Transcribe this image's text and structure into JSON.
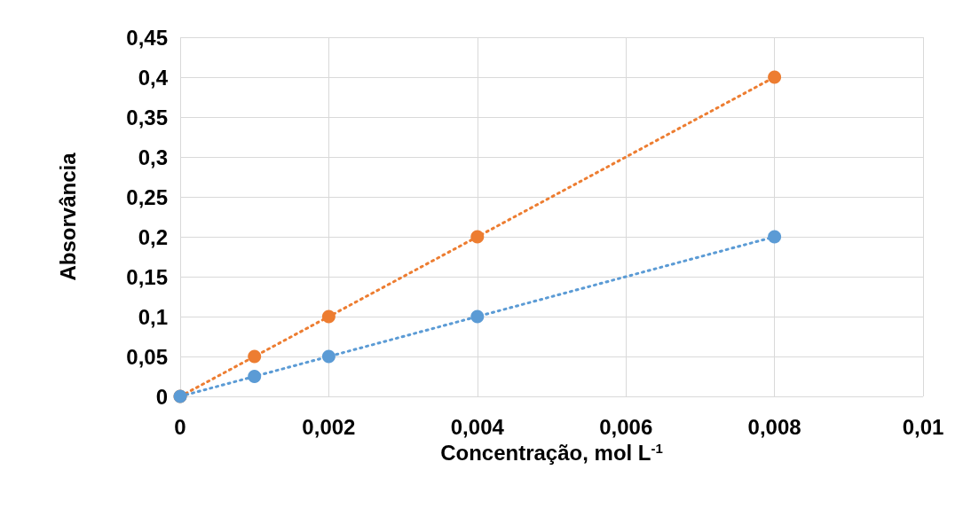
{
  "chart_data": {
    "type": "line",
    "xlabel": "Concentração, mol L$^{-1}$",
    "ylabel": "Absorvância",
    "x": [
      0,
      0.001,
      0.002,
      0.004,
      0.008
    ],
    "series": [
      {
        "color": "#ed7d31",
        "values": [
          0,
          0.05,
          0.1,
          0.2,
          0.4
        ]
      },
      {
        "color": "#5b9bd5",
        "values": [
          0,
          0.025,
          0.05,
          0.1,
          0.2
        ]
      }
    ],
    "xlim": [
      0,
      0.01
    ],
    "xticks": [
      0,
      {
        "value": 0.002,
        "label": "0,002"
      },
      {
        "value": 0.004,
        "label": "0,004"
      },
      {
        "value": 0.006,
        "label": "0,006"
      },
      {
        "value": 0.008,
        "label": "0,008"
      },
      {
        "value": 0.01,
        "label": "0,01"
      }
    ],
    "ylim": [
      0,
      0.45
    ],
    "yticks": [
      0,
      {
        "value": 0.05,
        "label": "0,05"
      },
      {
        "value": 0.1,
        "label": "0,1"
      },
      {
        "value": 0.15,
        "label": "0,15"
      },
      {
        "value": 0.2,
        "label": "0,2"
      },
      {
        "value": 0.25,
        "label": "0,25"
      },
      {
        "value": 0.3,
        "label": "0,3"
      },
      {
        "value": 0.35,
        "label": "0,35"
      },
      {
        "value": 0.4,
        "label": "0,4"
      },
      {
        "value": 0.45,
        "label": "0,45"
      }
    ],
    "grid": true,
    "marker": "circle",
    "line_style": "dotted"
  }
}
